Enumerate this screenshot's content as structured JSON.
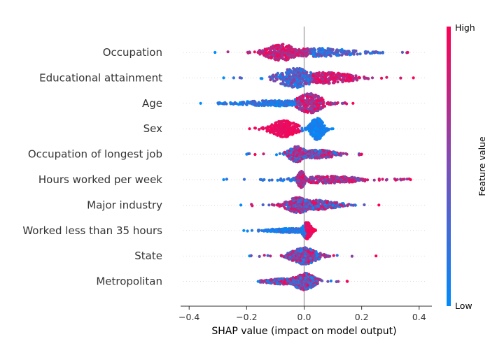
{
  "chart_data": {
    "type": "beeswarm",
    "xlabel": "SHAP value (impact on model output)",
    "xlim": [
      -0.42,
      0.42
    ],
    "xticks": [
      -0.4,
      -0.2,
      0.0,
      0.2,
      0.4
    ],
    "xtick_labels": [
      "−0.4",
      "−0.2",
      "0.0",
      "0.2",
      "0.4"
    ],
    "colorbar": {
      "title": "Feature value",
      "high_label": "High",
      "low_label": "Low",
      "high_color": "#ff0052",
      "low_color": "#008bfb"
    },
    "features": [
      {
        "name": "Occupation",
        "min": -0.31,
        "max": 0.36
      },
      {
        "name": "Educational attainment",
        "min": -0.28,
        "max": 0.38
      },
      {
        "name": "Age",
        "min": -0.36,
        "max": 0.17
      },
      {
        "name": "Sex",
        "min": -0.19,
        "max": 0.1
      },
      {
        "name": "Occupation of longest job",
        "min": -0.2,
        "max": 0.2
      },
      {
        "name": "Hours worked per week",
        "min": -0.28,
        "max": 0.37
      },
      {
        "name": "Major industry",
        "min": -0.22,
        "max": 0.26
      },
      {
        "name": "Worked less than 35 hours",
        "min": -0.21,
        "max": 0.04
      },
      {
        "name": "State",
        "min": -0.19,
        "max": 0.25
      },
      {
        "name": "Metropolitan",
        "min": -0.16,
        "max": 0.15
      }
    ]
  }
}
